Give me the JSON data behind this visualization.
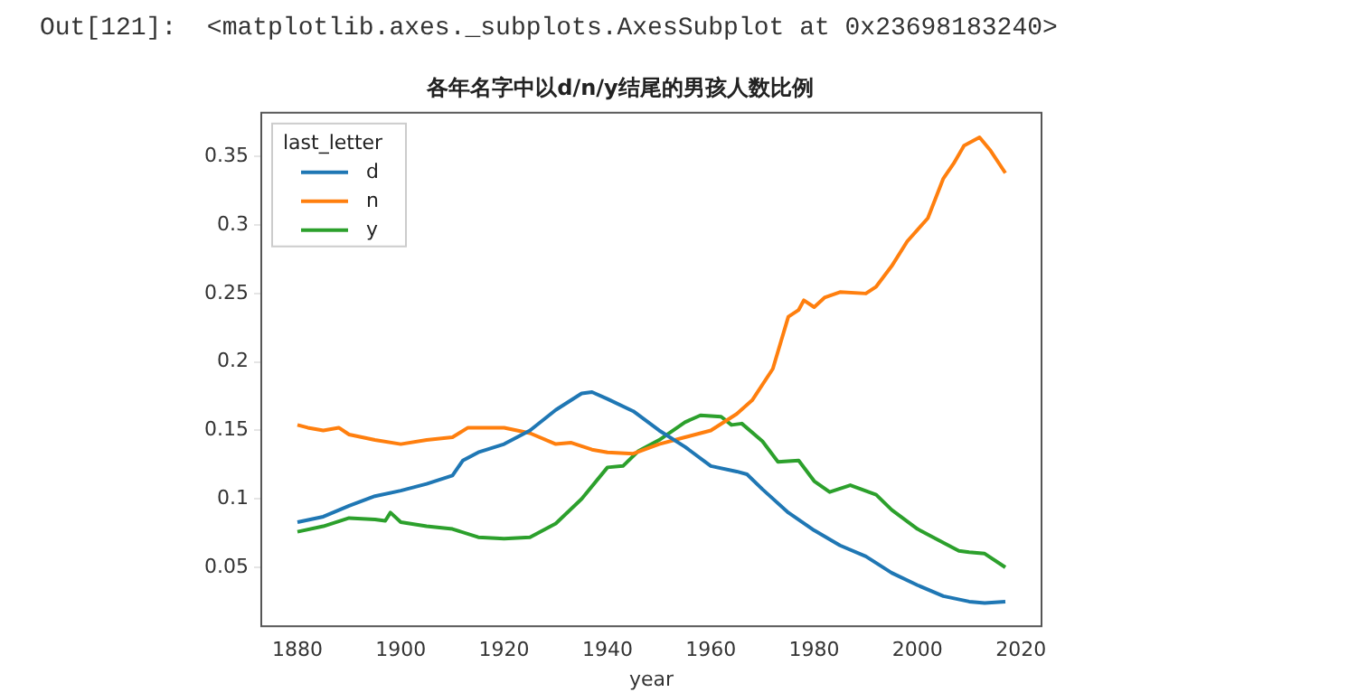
{
  "chart_data": {
    "type": "line",
    "title": "各年名字中以d/n/y结尾的男孩人数比例",
    "xlabel": "year",
    "legend_title": "last_letter",
    "legend": "top left",
    "grid": false,
    "marker": "none",
    "line_style": "solid",
    "annotations": [
      "Out[121]:  <matplotlib.axes._subplots.AxesSubplot at 0x23698183240>"
    ],
    "xlim": [
      1873,
      2024
    ],
    "xticks": [
      1880,
      1900,
      1920,
      1940,
      1960,
      1980,
      2000,
      2020
    ],
    "ylim": [
      0.007,
      0.382
    ],
    "yticks": [
      0.05,
      0.1,
      0.15,
      0.2,
      0.25,
      0.3,
      0.35
    ],
    "series": [
      {
        "name": "d",
        "color": "#1f77b4",
        "x": [
          1880,
          1885,
          1890,
          1895,
          1900,
          1905,
          1910,
          1912,
          1915,
          1920,
          1925,
          1930,
          1935,
          1937,
          1940,
          1945,
          1950,
          1955,
          1960,
          1965,
          1967,
          1970,
          1975,
          1980,
          1985,
          1990,
          1995,
          2000,
          2005,
          2010,
          2013,
          2017
        ],
        "values": [
          0.083,
          0.087,
          0.095,
          0.102,
          0.106,
          0.111,
          0.117,
          0.128,
          0.134,
          0.14,
          0.15,
          0.165,
          0.177,
          0.178,
          0.173,
          0.164,
          0.15,
          0.138,
          0.124,
          0.12,
          0.118,
          0.107,
          0.09,
          0.077,
          0.066,
          0.058,
          0.046,
          0.037,
          0.029,
          0.025,
          0.024,
          0.025
        ]
      },
      {
        "name": "n",
        "color": "#ff7f0e",
        "x": [
          1880,
          1882,
          1885,
          1888,
          1890,
          1895,
          1900,
          1905,
          1910,
          1913,
          1920,
          1925,
          1930,
          1933,
          1937,
          1940,
          1945,
          1950,
          1955,
          1960,
          1965,
          1968,
          1972,
          1975,
          1977,
          1978,
          1980,
          1982,
          1985,
          1990,
          1992,
          1995,
          1998,
          2002,
          2005,
          2007,
          2009,
          2012,
          2014,
          2017
        ],
        "values": [
          0.154,
          0.152,
          0.15,
          0.152,
          0.147,
          0.143,
          0.14,
          0.143,
          0.145,
          0.152,
          0.152,
          0.148,
          0.14,
          0.141,
          0.136,
          0.134,
          0.133,
          0.14,
          0.145,
          0.15,
          0.162,
          0.172,
          0.195,
          0.233,
          0.238,
          0.245,
          0.24,
          0.247,
          0.251,
          0.25,
          0.255,
          0.27,
          0.288,
          0.305,
          0.334,
          0.345,
          0.358,
          0.364,
          0.355,
          0.338
        ]
      },
      {
        "name": "y",
        "color": "#2ca02c",
        "x": [
          1880,
          1885,
          1890,
          1895,
          1897,
          1898,
          1900,
          1905,
          1910,
          1915,
          1920,
          1925,
          1930,
          1935,
          1940,
          1943,
          1946,
          1950,
          1955,
          1958,
          1962,
          1964,
          1966,
          1970,
          1973,
          1977,
          1980,
          1983,
          1987,
          1992,
          1995,
          2000,
          2005,
          2008,
          2010,
          2013,
          2017
        ],
        "values": [
          0.076,
          0.08,
          0.086,
          0.085,
          0.084,
          0.09,
          0.083,
          0.08,
          0.078,
          0.072,
          0.071,
          0.072,
          0.082,
          0.1,
          0.123,
          0.124,
          0.135,
          0.143,
          0.156,
          0.161,
          0.16,
          0.154,
          0.155,
          0.142,
          0.127,
          0.128,
          0.113,
          0.105,
          0.11,
          0.103,
          0.092,
          0.078,
          0.068,
          0.062,
          0.061,
          0.06,
          0.05
        ]
      }
    ]
  }
}
